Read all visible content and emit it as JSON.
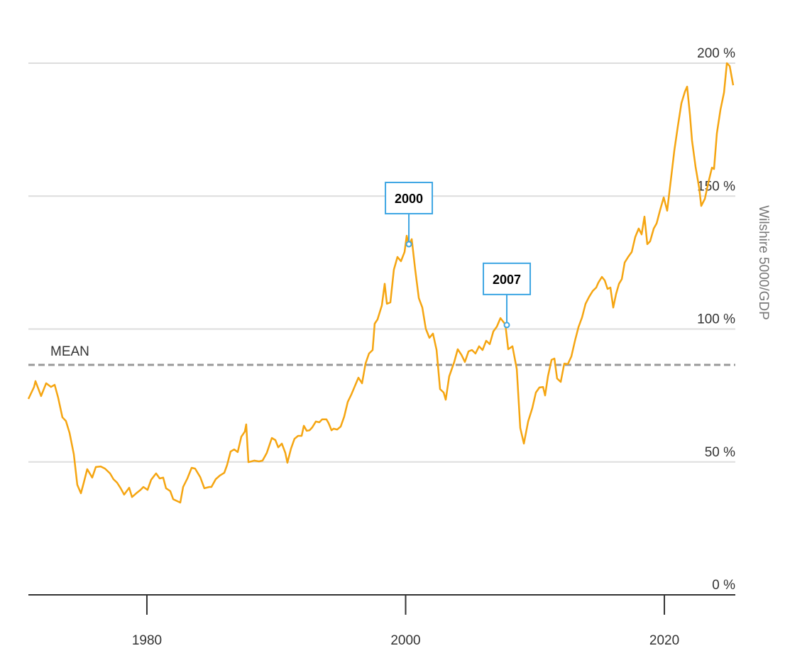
{
  "chart_data": {
    "type": "line",
    "y_axis_label": "Wilshire 5000/GDP",
    "color": "#f5a511",
    "xlim": [
      1970.84,
      2025.32
    ],
    "xticks": [
      1980,
      2000,
      2020
    ],
    "ylim": [
      0,
      200
    ],
    "yticks": [
      {
        "value": 0,
        "label": "0 %"
      },
      {
        "value": 50,
        "label": "50 %"
      },
      {
        "value": 100,
        "label": "100 %"
      },
      {
        "value": 150,
        "label": "150 %"
      },
      {
        "value": 200,
        "label": "200 %"
      }
    ],
    "grid": true,
    "mean": {
      "label": "MEAN",
      "value": 86.5
    },
    "annotations": [
      {
        "label": "2000",
        "x": 2000.25,
        "y": 131.9
      },
      {
        "label": "2007",
        "x": 2007.82,
        "y": 101.5
      }
    ],
    "x": [
      1970.84,
      1971.28,
      1971.39,
      1971.82,
      1972.21,
      1972.59,
      1972.87,
      1973.14,
      1973.47,
      1973.74,
      1974.02,
      1974.35,
      1974.62,
      1974.9,
      1975.12,
      1975.39,
      1975.77,
      1976.05,
      1976.43,
      1976.76,
      1977.15,
      1977.42,
      1977.7,
      1977.97,
      1978.24,
      1978.63,
      1978.85,
      1979.18,
      1979.51,
      1979.73,
      1980.05,
      1980.33,
      1980.71,
      1980.99,
      1981.26,
      1981.48,
      1981.81,
      1982.03,
      1982.58,
      1982.8,
      1983.13,
      1983.46,
      1983.73,
      1984.12,
      1984.44,
      1984.83,
      1984.99,
      1985.32,
      1985.65,
      1985.98,
      1986.2,
      1986.47,
      1986.75,
      1987.02,
      1987.3,
      1987.57,
      1987.68,
      1987.85,
      1988.29,
      1988.67,
      1988.94,
      1989.27,
      1989.66,
      1989.93,
      1990.15,
      1990.43,
      1990.7,
      1990.86,
      1991.14,
      1991.41,
      1991.69,
      1991.96,
      1992.13,
      1992.35,
      1992.57,
      1992.78,
      1993.06,
      1993.33,
      1993.55,
      1993.88,
      1994.05,
      1994.27,
      1994.43,
      1994.71,
      1994.98,
      1995.25,
      1995.53,
      1995.8,
      1996.35,
      1996.63,
      1996.9,
      1997.17,
      1997.45,
      1997.61,
      1997.83,
      1998.16,
      1998.38,
      1998.55,
      1998.82,
      1999.09,
      1999.37,
      1999.64,
      1999.92,
      2000.08,
      2000.25,
      2000.47,
      2000.74,
      2001.02,
      2001.29,
      2001.56,
      2001.84,
      2002.11,
      2002.39,
      2002.66,
      2002.94,
      2003.1,
      2003.37,
      2003.76,
      2004.03,
      2004.31,
      2004.58,
      2004.86,
      2005.13,
      2005.4,
      2005.68,
      2005.95,
      2006.23,
      2006.5,
      2006.78,
      2007.05,
      2007.33,
      2007.71,
      2007.93,
      2008.26,
      2008.59,
      2008.86,
      2009.14,
      2009.47,
      2009.79,
      2010.07,
      2010.34,
      2010.62,
      2010.78,
      2011.0,
      2011.28,
      2011.5,
      2011.71,
      2011.99,
      2012.26,
      2012.54,
      2012.81,
      2013.09,
      2013.36,
      2013.64,
      2013.91,
      2014.18,
      2014.46,
      2014.73,
      2014.9,
      2015.17,
      2015.39,
      2015.61,
      2015.83,
      2016.05,
      2016.27,
      2016.49,
      2016.71,
      2016.93,
      2017.2,
      2017.48,
      2017.75,
      2018.02,
      2018.24,
      2018.46,
      2018.68,
      2018.9,
      2019.18,
      2019.4,
      2019.67,
      2019.95,
      2020.22,
      2020.49,
      2020.77,
      2021.04,
      2021.32,
      2021.59,
      2021.76,
      2021.98,
      2022.14,
      2022.41,
      2022.69,
      2022.85,
      2023.13,
      2023.4,
      2023.68,
      2023.84,
      2024.06,
      2024.33,
      2024.61,
      2024.83,
      2025.05,
      2025.32
    ],
    "values": [
      73.7,
      78.2,
      80.4,
      74.8,
      79.6,
      78.2,
      79.0,
      74.2,
      66.8,
      65.4,
      60.9,
      52.9,
      41.4,
      38.2,
      42.2,
      47.3,
      44.1,
      48.1,
      48.3,
      47.5,
      45.7,
      43.5,
      42.2,
      40.1,
      37.7,
      40.3,
      36.8,
      38.2,
      39.5,
      40.6,
      39.5,
      43.3,
      45.7,
      43.8,
      44.1,
      40.1,
      39.0,
      36.0,
      34.7,
      40.6,
      43.8,
      47.8,
      47.5,
      44.3,
      40.1,
      40.6,
      40.6,
      43.5,
      44.9,
      45.9,
      48.9,
      53.9,
      54.7,
      53.7,
      59.5,
      61.4,
      64.1,
      49.9,
      50.5,
      50.2,
      50.5,
      53.4,
      59.0,
      58.2,
      55.5,
      56.9,
      53.4,
      49.7,
      55.0,
      58.7,
      59.8,
      59.8,
      63.6,
      61.7,
      61.9,
      63.0,
      65.2,
      64.9,
      66.0,
      66.0,
      64.6,
      61.9,
      62.5,
      62.2,
      63.3,
      67.0,
      72.6,
      75.3,
      81.7,
      79.6,
      87.0,
      90.8,
      92.1,
      102.0,
      103.6,
      108.9,
      117.0,
      109.5,
      110.0,
      122.3,
      127.1,
      125.5,
      129.0,
      135.1,
      131.6,
      133.8,
      122.3,
      111.6,
      108.1,
      100.1,
      96.7,
      98.3,
      92.1,
      77.4,
      76.1,
      73.4,
      82.2,
      87.6,
      92.4,
      90.3,
      87.6,
      91.6,
      92.1,
      90.8,
      93.5,
      92.1,
      95.6,
      94.3,
      99.1,
      100.9,
      104.1,
      101.7,
      92.4,
      93.5,
      84.9,
      62.8,
      56.9,
      65.2,
      70.2,
      76.1,
      78.0,
      78.2,
      75.0,
      82.2,
      88.4,
      88.9,
      81.4,
      80.1,
      87.0,
      86.8,
      89.7,
      95.6,
      100.7,
      104.4,
      109.5,
      112.1,
      114.3,
      115.6,
      117.5,
      119.6,
      118.3,
      115.1,
      115.6,
      108.1,
      113.2,
      117.0,
      118.8,
      125.0,
      127.1,
      129.0,
      134.6,
      137.8,
      135.6,
      142.3,
      131.9,
      133.0,
      137.8,
      139.7,
      144.7,
      149.5,
      144.5,
      155.7,
      167.2,
      176.2,
      185.0,
      189.3,
      191.2,
      180.5,
      170.9,
      161.0,
      153.0,
      146.3,
      149.0,
      155.1,
      160.7,
      160.2,
      173.6,
      182.4,
      189.0,
      200.0,
      198.9,
      191.7
    ]
  }
}
